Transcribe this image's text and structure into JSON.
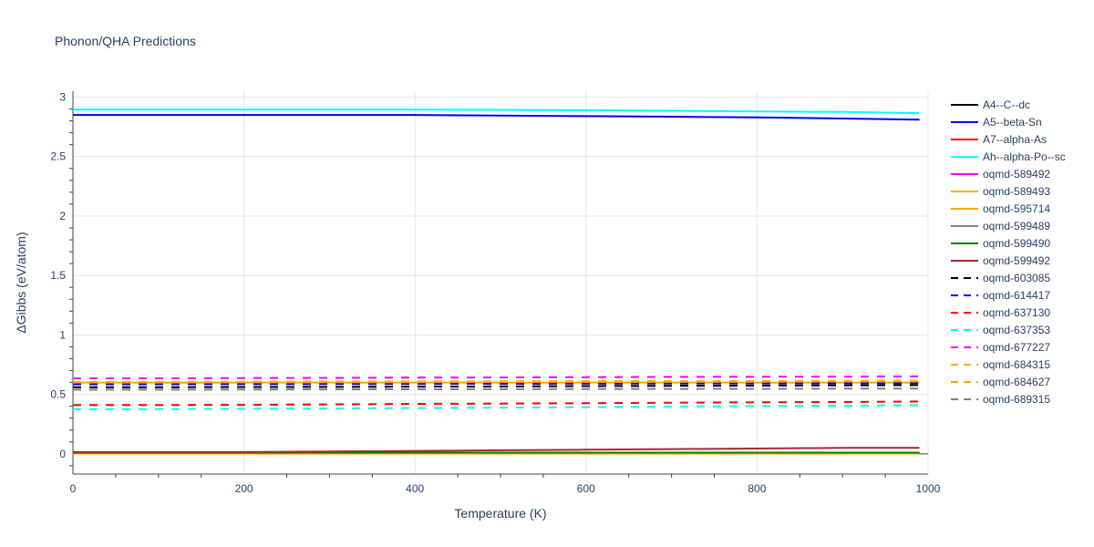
{
  "chart_data": {
    "type": "line",
    "title": "Phonon/QHA Predictions",
    "xlabel": "Temperature (K)",
    "ylabel": "ΔGibbs (eV/atom)",
    "xlim": [
      0,
      1000
    ],
    "ylim": [
      -0.17,
      3.05
    ],
    "x_ticks": [
      0,
      200,
      400,
      600,
      800,
      1000
    ],
    "x_tick_labels": [
      "0",
      "200",
      "400",
      "600",
      "800",
      "1000"
    ],
    "y_ticks": [
      0,
      0.5,
      1,
      1.5,
      2,
      2.5,
      3
    ],
    "y_tick_labels": [
      "0",
      "0.5",
      "1",
      "1.5",
      "2",
      "2.5",
      "3"
    ],
    "grid": true,
    "legend_position": "right",
    "x": [
      0,
      100,
      200,
      300,
      400,
      500,
      600,
      700,
      800,
      900,
      990
    ],
    "series": [
      {
        "name": "A4--C--dc",
        "color": "#000000",
        "dash": "solid",
        "values": [
          0.01,
          0.01,
          0.01,
          0.01,
          0.01,
          0.01,
          0.01,
          0.01,
          0.01,
          0.01,
          0.01
        ]
      },
      {
        "name": "A5--beta-Sn",
        "color": "#0000ff",
        "dash": "solid",
        "values": [
          2.85,
          2.85,
          2.85,
          2.85,
          2.85,
          2.845,
          2.84,
          2.835,
          2.83,
          2.82,
          2.81
        ]
      },
      {
        "name": "A7--alpha-As",
        "color": "#ff0000",
        "dash": "solid",
        "values": [
          0.005,
          0.005,
          0.005,
          0.005,
          0.005,
          0.005,
          0.005,
          0.005,
          0.005,
          0.005,
          0.005
        ]
      },
      {
        "name": "Ah--alpha-Po--sc",
        "color": "#00ffff",
        "dash": "solid",
        "values": [
          2.895,
          2.895,
          2.895,
          2.895,
          2.894,
          2.893,
          2.89,
          2.885,
          2.88,
          2.875,
          2.865
        ]
      },
      {
        "name": "oqmd-589492",
        "color": "#ff00ff",
        "dash": "solid",
        "values": [
          0.005,
          0.005,
          0.005,
          0.005,
          0.005,
          0.005,
          0.005,
          0.005,
          0.005,
          0.005,
          0.005
        ]
      },
      {
        "name": "oqmd-589493",
        "color": "#ffb000",
        "dash": "solid",
        "values": [
          0.002,
          0.002,
          0.002,
          0.002,
          0.002,
          0.002,
          0.002,
          0.002,
          0.002,
          0.002,
          0.002
        ]
      },
      {
        "name": "oqmd-595714",
        "color": "#ffa500",
        "dash": "solid",
        "values": [
          0.6,
          0.6,
          0.6,
          0.6,
          0.6,
          0.6,
          0.6,
          0.6,
          0.6,
          0.6,
          0.6
        ]
      },
      {
        "name": "oqmd-599489",
        "color": "#808080",
        "dash": "solid",
        "values": [
          0.01,
          0.01,
          0.01,
          0.01,
          0.01,
          0.01,
          0.01,
          0.01,
          0.01,
          0.01,
          0.01
        ]
      },
      {
        "name": "oqmd-599490",
        "color": "#008000",
        "dash": "solid",
        "values": [
          0.01,
          0.01,
          0.01,
          0.01,
          0.01,
          0.01,
          0.01,
          0.01,
          0.01,
          0.01,
          0.01
        ]
      },
      {
        "name": "oqmd-599492",
        "color": "#a52a2a",
        "dash": "solid",
        "values": [
          0.015,
          0.015,
          0.015,
          0.02,
          0.025,
          0.03,
          0.035,
          0.04,
          0.045,
          0.05,
          0.05
        ]
      },
      {
        "name": "oqmd-603085",
        "color": "#000000",
        "dash": "dash",
        "values": [
          0.56,
          0.56,
          0.562,
          0.563,
          0.565,
          0.567,
          0.57,
          0.572,
          0.574,
          0.576,
          0.578
        ]
      },
      {
        "name": "oqmd-614417",
        "color": "#0000ff",
        "dash": "dash",
        "values": [
          0.585,
          0.585,
          0.586,
          0.587,
          0.588,
          0.589,
          0.59,
          0.591,
          0.592,
          0.593,
          0.594
        ]
      },
      {
        "name": "oqmd-637130",
        "color": "#ff0000",
        "dash": "dash",
        "values": [
          0.41,
          0.41,
          0.413,
          0.416,
          0.42,
          0.423,
          0.426,
          0.43,
          0.433,
          0.436,
          0.44
        ]
      },
      {
        "name": "oqmd-637353",
        "color": "#00ffff",
        "dash": "dash",
        "values": [
          0.375,
          0.376,
          0.378,
          0.381,
          0.385,
          0.389,
          0.393,
          0.397,
          0.401,
          0.405,
          0.408
        ]
      },
      {
        "name": "oqmd-677227",
        "color": "#ff00ff",
        "dash": "dash",
        "values": [
          0.635,
          0.635,
          0.637,
          0.639,
          0.641,
          0.643,
          0.645,
          0.647,
          0.649,
          0.65,
          0.652
        ]
      },
      {
        "name": "oqmd-684315",
        "color": "#ffb000",
        "dash": "dash",
        "values": [
          0.605,
          0.605,
          0.607,
          0.608,
          0.609,
          0.61,
          0.611,
          0.612,
          0.613,
          0.614,
          0.615
        ]
      },
      {
        "name": "oqmd-684627",
        "color": "#ffa500",
        "dash": "dash",
        "values": [
          0.6,
          0.6,
          0.601,
          0.602,
          0.603,
          0.604,
          0.605,
          0.606,
          0.607,
          0.608,
          0.609
        ]
      },
      {
        "name": "oqmd-689315",
        "color": "#808080",
        "dash": "dash",
        "values": [
          0.54,
          0.54,
          0.541,
          0.542,
          0.543,
          0.544,
          0.545,
          0.546,
          0.547,
          0.548,
          0.549
        ]
      }
    ]
  },
  "colors": {
    "grid": "#e5e5e5",
    "text": "#2a3f5f",
    "zero_line": "#444444",
    "axis_line": "#444444"
  }
}
